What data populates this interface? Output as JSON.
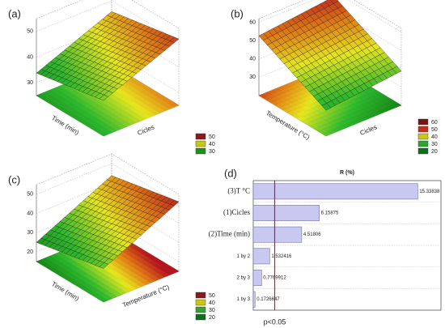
{
  "chart_data": [
    {
      "type": "surface",
      "label": "(a)",
      "xlabel": "Time (min)",
      "ylabel": "Cicles",
      "zlim": [
        25,
        55
      ],
      "zticks": [
        30,
        40,
        50
      ],
      "legend": {
        "levels": [
          50,
          40,
          30
        ],
        "colors": [
          "#8b1a1a",
          "#c8c814",
          "#1f8f1f"
        ]
      }
    },
    {
      "type": "surface",
      "label": "(b)",
      "xlabel": "Temperature (°C)",
      "ylabel": "Cicles",
      "zlim": [
        20,
        62
      ],
      "zticks": [
        30,
        40,
        50,
        60
      ],
      "legend": {
        "levels": [
          60,
          50,
          40,
          30,
          20
        ],
        "colors": [
          "#7a1414",
          "#c0301e",
          "#c8c814",
          "#35a035",
          "#0f6e1e"
        ]
      }
    },
    {
      "type": "surface",
      "label": "(c)",
      "xlabel": "Time (min)",
      "ylabel": "Temperature (°C)",
      "zlim": [
        15,
        55
      ],
      "zticks": [
        20,
        30,
        40,
        50
      ],
      "legend": {
        "levels": [
          50,
          40,
          30,
          20
        ],
        "colors": [
          "#8b1a1a",
          "#c8c814",
          "#35a035",
          "#0f6e1e"
        ]
      }
    },
    {
      "type": "pareto",
      "label": "(d)",
      "title": "R (%)",
      "annotation": "p<0.05",
      "categories": [
        "(3)T °C",
        "(1)Cicles",
        "(2)Time (min)",
        "1 by 2",
        "2 by 3",
        "1 by 3"
      ],
      "values": [
        15.33838,
        6.15875,
        4.51806,
        1.532416,
        0.7769912,
        0.1726647
      ],
      "threshold": 2.0,
      "xlim": [
        0,
        17.5
      ],
      "color": "#c8c8f0",
      "threshold_color": "#c0202a"
    }
  ]
}
